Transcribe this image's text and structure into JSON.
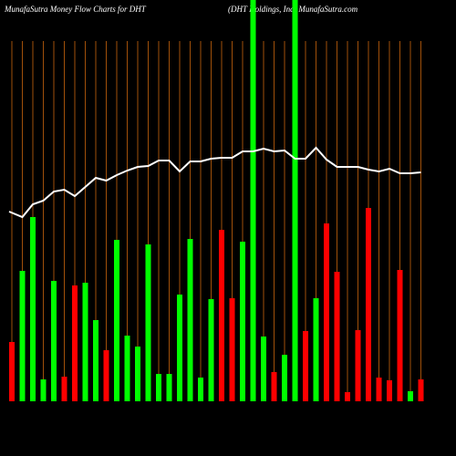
{
  "chart_data": {
    "type": "bar",
    "title": "MunafaSutra  Money Flow  Charts for DHT",
    "subtitle": "(DHT Holdings,  Inc) MunafaSutra.com",
    "background": "#000000",
    "grid": true,
    "grid_color": "#a0500a",
    "categories": [
      null,
      null,
      null,
      null,
      null,
      null,
      null,
      null,
      null,
      null,
      null,
      null,
      null,
      null,
      null,
      null,
      null,
      null,
      null,
      null,
      null,
      null,
      null,
      null,
      null,
      null,
      null,
      null,
      null,
      null,
      null,
      null,
      null,
      null,
      null,
      null,
      null,
      null,
      null,
      null
    ],
    "series": [
      {
        "type": "bar",
        "values": [
          65,
          143,
          202,
          24,
          132,
          27,
          127,
          130,
          89,
          56,
          177,
          72,
          60,
          172,
          30,
          30,
          117,
          178,
          26,
          112,
          188,
          113,
          175,
          460,
          71,
          32,
          51,
          460,
          77,
          113,
          195,
          142,
          10,
          78,
          212,
          26,
          23,
          144,
          11,
          24
        ],
        "colors": [
          "#ff0000",
          "#00ff00",
          "#00ff00",
          "#00ff00",
          "#00ff00",
          "#ff0000",
          "#ff0000",
          "#00ff00",
          "#00ff00",
          "#ff0000",
          "#00ff00",
          "#00ff00",
          "#00ff00",
          "#00ff00",
          "#00ff00",
          "#00ff00",
          "#00ff00",
          "#00ff00",
          "#00ff00",
          "#00ff00",
          "#ff0000",
          "#ff0000",
          "#00ff00",
          "#00ff00",
          "#00ff00",
          "#ff0000",
          "#00ff00",
          "#00ff00",
          "#ff0000",
          "#00ff00",
          "#ff0000",
          "#ff0000",
          "#ff0000",
          "#ff0000",
          "#ff0000",
          "#ff0000",
          "#ff0000",
          "#ff0000",
          "#00ff00",
          "#ff0000"
        ]
      },
      {
        "type": "line",
        "color": "#ffffff",
        "values": [
          208,
          202,
          216,
          220,
          230,
          232,
          225,
          235,
          245,
          242,
          248,
          253,
          257,
          258,
          264,
          264,
          252,
          263,
          263,
          266,
          267,
          267,
          274,
          274,
          277,
          274,
          275,
          266,
          266,
          278,
          265,
          257,
          257,
          257,
          254,
          252,
          255,
          250,
          250,
          251
        ]
      }
    ]
  }
}
